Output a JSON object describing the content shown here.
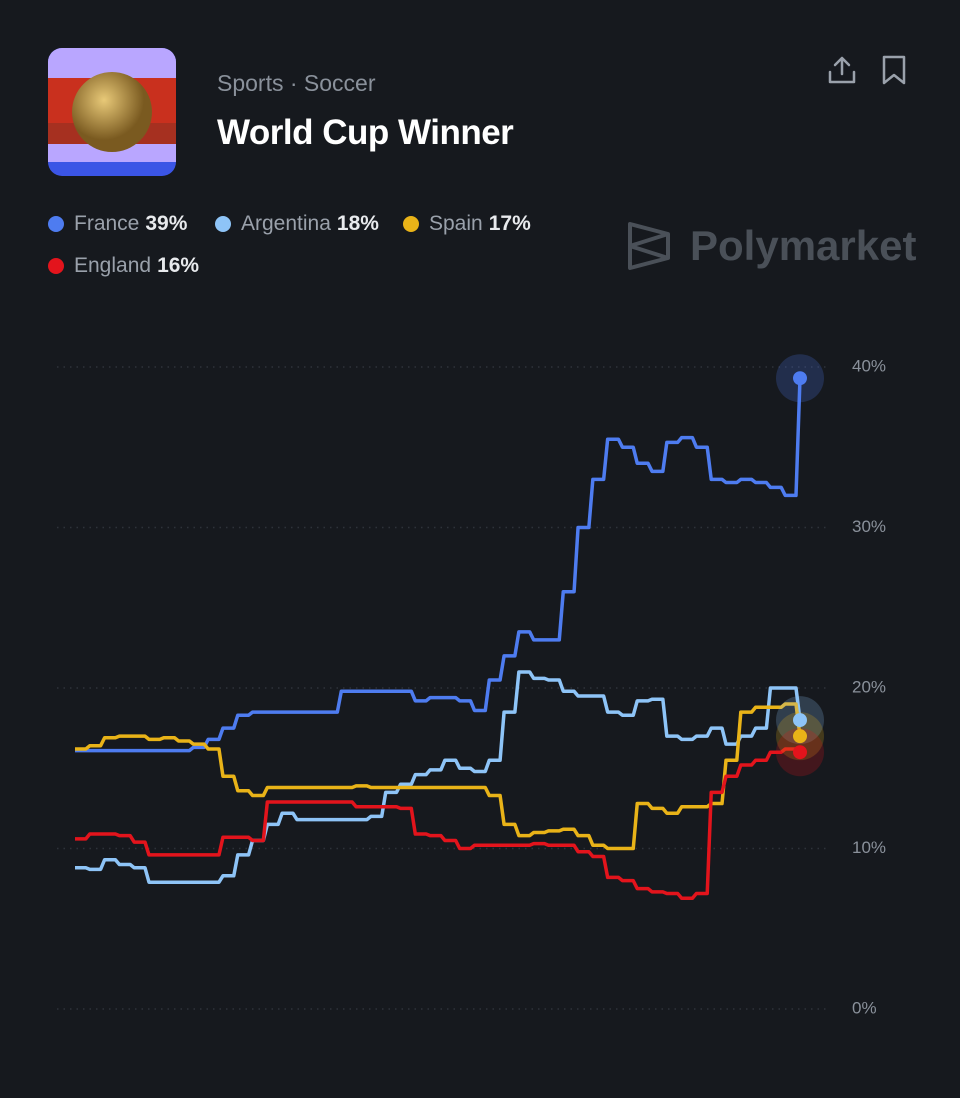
{
  "header": {
    "category": "Sports · Soccer",
    "title": "World Cup Winner",
    "watermark": "Polymarket"
  },
  "chart_data": {
    "type": "line",
    "ylim": [
      0,
      40
    ],
    "yticks": [
      {
        "value": 0,
        "label": "0%"
      },
      {
        "value": 10,
        "label": "10%"
      },
      {
        "value": 20,
        "label": "20%"
      },
      {
        "value": 30,
        "label": "30%"
      },
      {
        "value": 40,
        "label": "40%"
      }
    ],
    "grid": true,
    "series": [
      {
        "name": "France",
        "label": "39%",
        "color": "#4e7cf0",
        "values": [
          16.1,
          16.1,
          16.1,
          16.1,
          16.1,
          16.1,
          16.1,
          16.1,
          16.3,
          16.8,
          17.5,
          18.3,
          18.5,
          18.5,
          18.5,
          18.5,
          18.5,
          18.5,
          19.8,
          19.8,
          19.8,
          19.8,
          19.8,
          19.2,
          19.4,
          19.4,
          19.2,
          18.6,
          20.5,
          22,
          23.5,
          23,
          23,
          26,
          30,
          33,
          35.5,
          35,
          34,
          33.5,
          35.3,
          35.6,
          35,
          33,
          32.8,
          33,
          32.8,
          32.5,
          32,
          39.3
        ]
      },
      {
        "name": "Argentina",
        "label": "18%",
        "color": "#8ec4f7",
        "values": [
          8.8,
          8.7,
          9.3,
          9,
          8.8,
          7.9,
          7.9,
          7.9,
          7.9,
          7.9,
          8.3,
          9.6,
          10.5,
          11.5,
          12.2,
          11.8,
          11.8,
          11.8,
          11.8,
          11.8,
          12,
          13.5,
          14,
          14.6,
          14.9,
          15.5,
          15,
          14.8,
          15.5,
          18.5,
          21,
          20.6,
          20.5,
          19.8,
          19.5,
          19.5,
          18.5,
          18.3,
          19.2,
          19.3,
          17,
          16.8,
          17,
          17.5,
          16.5,
          17,
          17.5,
          20,
          20,
          18
        ]
      },
      {
        "name": "Spain",
        "label": "17%",
        "color": "#e9b318",
        "values": [
          16.2,
          16.4,
          16.9,
          17,
          17,
          16.8,
          16.9,
          16.7,
          16.5,
          16.2,
          14.5,
          13.6,
          13.3,
          13.8,
          13.8,
          13.8,
          13.8,
          13.8,
          13.8,
          13.9,
          13.8,
          13.8,
          13.8,
          13.8,
          13.8,
          13.8,
          13.8,
          13.8,
          13.3,
          11.5,
          10.8,
          11,
          11.1,
          11.2,
          10.8,
          10.2,
          10,
          10,
          12.8,
          12.5,
          12.2,
          12.6,
          12.6,
          12.8,
          15.5,
          18.5,
          18.8,
          18.8,
          19,
          17
        ]
      },
      {
        "name": "England",
        "label": "16%",
        "color": "#e3141c",
        "values": [
          10.6,
          10.9,
          10.9,
          10.8,
          10.4,
          9.6,
          9.6,
          9.6,
          9.6,
          9.6,
          10.7,
          10.7,
          10.5,
          12.9,
          12.9,
          12.9,
          12.9,
          12.9,
          12.9,
          12.6,
          12.6,
          12.6,
          12.5,
          10.9,
          10.8,
          10.5,
          10,
          10.2,
          10.2,
          10.2,
          10.2,
          10.3,
          10.2,
          10.2,
          9.8,
          9.5,
          8.2,
          8,
          7.5,
          7.3,
          7.2,
          6.9,
          7.2,
          13.5,
          14.5,
          15.2,
          15.5,
          16,
          16.2,
          16
        ]
      }
    ]
  }
}
